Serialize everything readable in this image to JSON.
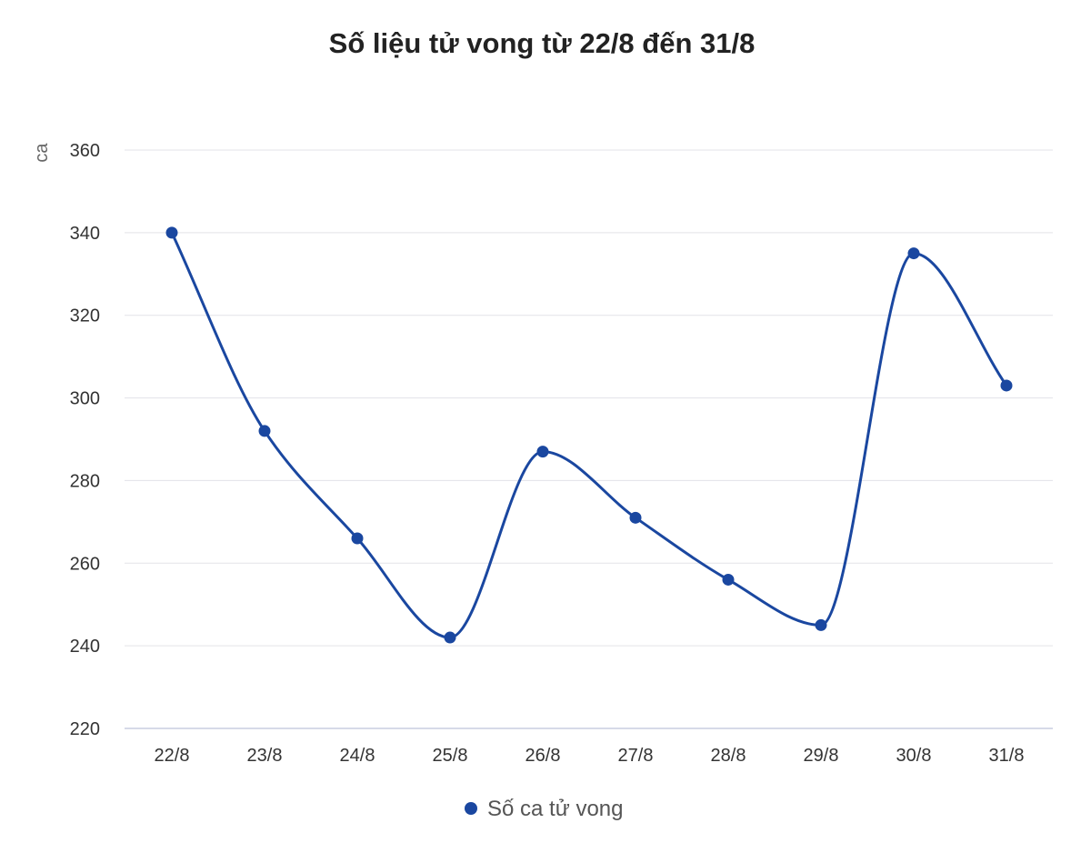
{
  "colors": {
    "series": "#1a47a0",
    "grid": "#e3e3e8"
  },
  "chart_data": {
    "type": "line",
    "title": "Số liệu tử vong từ 22/8 đến 31/8",
    "ylabel": "ca",
    "xlabel": "",
    "ylim": [
      220,
      360
    ],
    "yticks": [
      220,
      240,
      260,
      280,
      300,
      320,
      340,
      360
    ],
    "categories": [
      "22/8",
      "23/8",
      "24/8",
      "25/8",
      "26/8",
      "27/8",
      "28/8",
      "29/8",
      "30/8",
      "31/8"
    ],
    "series": [
      {
        "name": "Số ca tử vong",
        "values": [
          340,
          292,
          266,
          242,
          287,
          271,
          256,
          245,
          335,
          303
        ]
      }
    ],
    "grid": true,
    "smooth": true,
    "legend": "bottom-center"
  }
}
